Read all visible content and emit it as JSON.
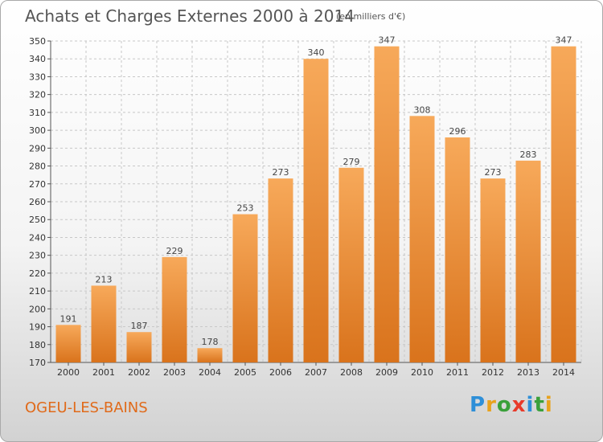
{
  "header": {
    "title": "Achats et Charges Externes 2000 à 2014",
    "subtitle": "(en milliers d'€)"
  },
  "footer": {
    "commune": "OGEU-LES-BAINS",
    "logo": "Proxiti"
  },
  "colors": {
    "bar_light": "#f7a95a",
    "bar_dark": "#d9731c",
    "grid": "#c8c8c8",
    "commune_text": "#e06a1a",
    "logo_letters": [
      "#2e8fd8",
      "#e8a21c",
      "#3aa03a",
      "#e83a2a",
      "#2e8fd8",
      "#3aa03a",
      "#e8a21c"
    ]
  },
  "chart_data": {
    "type": "bar",
    "title": "Achats et Charges Externes 2000 à 2014",
    "subtitle": "(en milliers d'€)",
    "categories": [
      "2000",
      "2001",
      "2002",
      "2003",
      "2004",
      "2005",
      "2006",
      "2007",
      "2008",
      "2009",
      "2010",
      "2011",
      "2012",
      "2013",
      "2014"
    ],
    "values": [
      191,
      213,
      187,
      229,
      178,
      253,
      273,
      340,
      279,
      347,
      308,
      296,
      273,
      283,
      347
    ],
    "ylim": [
      170,
      350
    ],
    "ytick_step": 10,
    "grid": true,
    "legend": "none"
  }
}
